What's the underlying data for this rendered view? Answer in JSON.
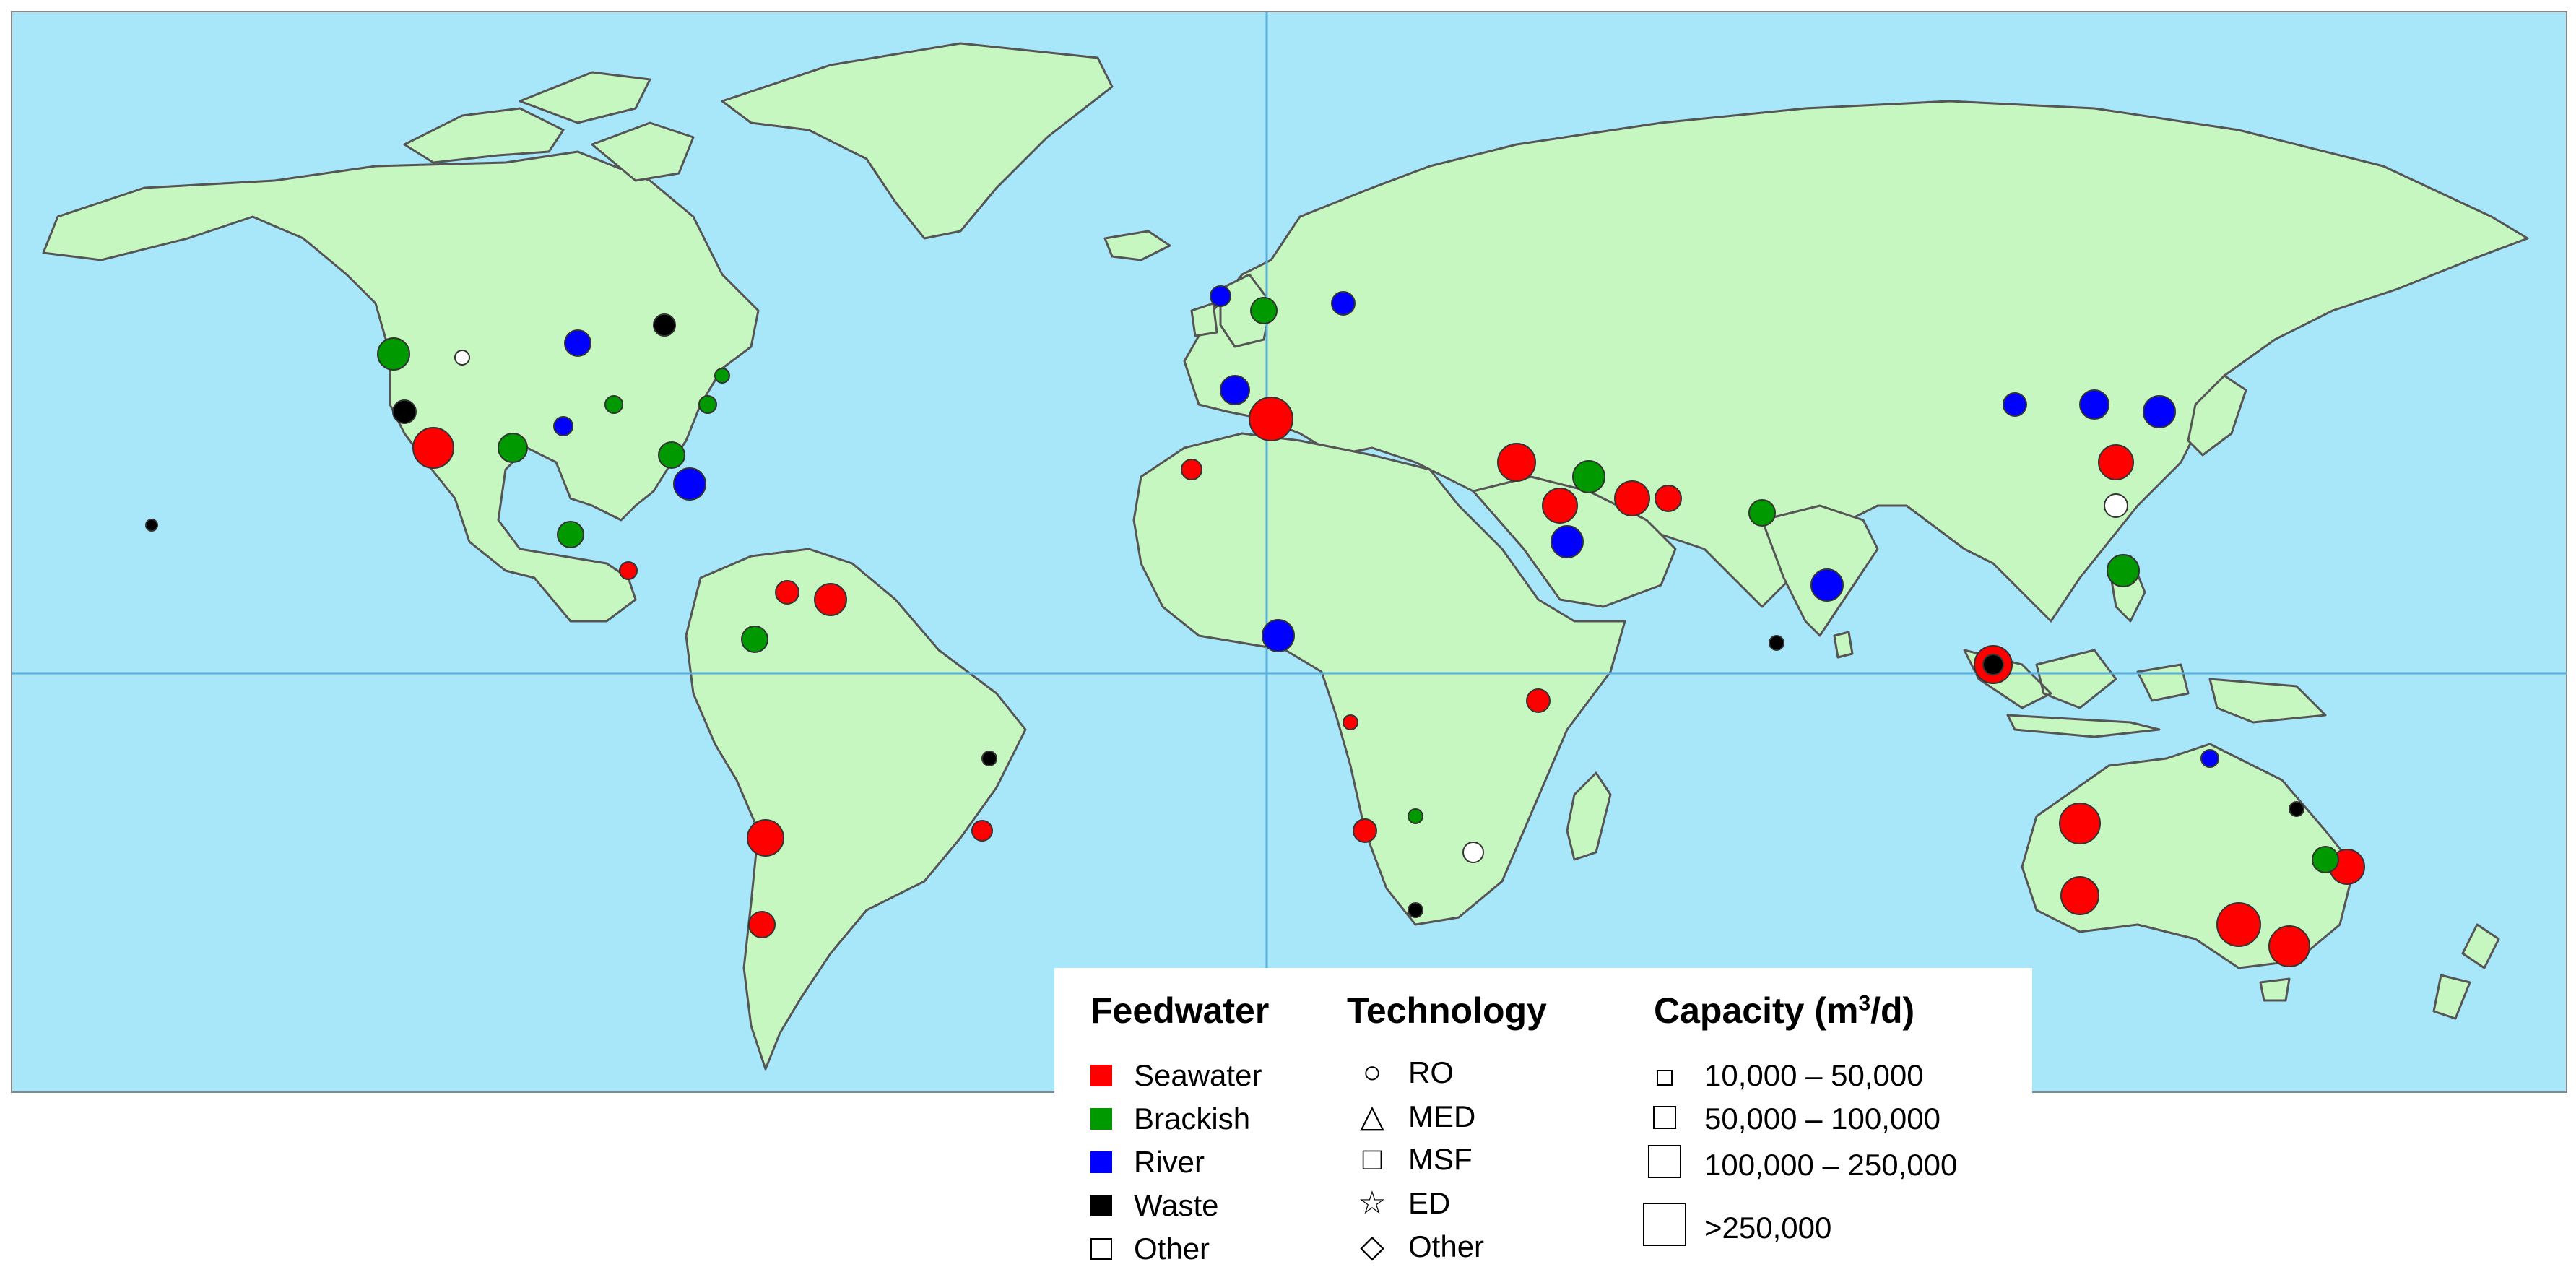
{
  "legend": {
    "feedwater": {
      "title": "Feedwater",
      "items": [
        {
          "label": "Seawater",
          "color": "#ff0000"
        },
        {
          "label": "Brackish",
          "color": "#009900"
        },
        {
          "label": "River",
          "color": "#0000ff"
        },
        {
          "label": "Waste",
          "color": "#000000"
        },
        {
          "label": "Other",
          "color": "#ffffff"
        }
      ]
    },
    "technology": {
      "title": "Technology",
      "items": [
        {
          "label": "RO",
          "symbol": "circle"
        },
        {
          "label": "MED",
          "symbol": "triangle"
        },
        {
          "label": "MSF",
          "symbol": "square"
        },
        {
          "label": "ED",
          "symbol": "star"
        },
        {
          "label": "Other",
          "symbol": "diamond"
        }
      ]
    },
    "capacity": {
      "title_main": "Capacity (m",
      "title_sup": "3",
      "title_end": "/d)",
      "items": [
        {
          "label": "10,000 – 50,000"
        },
        {
          "label": "50,000 – 100,000"
        },
        {
          "label": "100,000 – 250,000"
        },
        {
          "label": ">250,000"
        }
      ]
    }
  },
  "map": {
    "ocean_color": "#a8e6fa",
    "land_color": "#c6f7c0",
    "border_color": "#555555",
    "grid_color": "#5aaed8"
  }
}
